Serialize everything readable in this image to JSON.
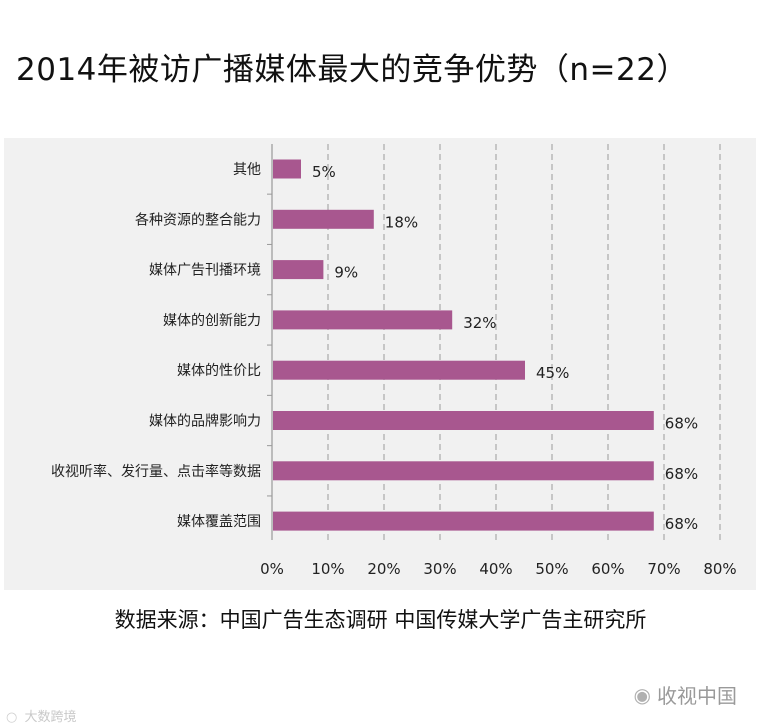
{
  "chart_data": {
    "type": "bar",
    "orientation": "horizontal",
    "title": "2014年被访广播媒体最大的竞争优势（n=22）",
    "categories": [
      "其他",
      "各种资源的整合能力",
      "媒体广告刊播环境",
      "媒体的创新能力",
      "媒体的性价比",
      "媒体的品牌影响力",
      "收视听率、发行量、点击率等数据",
      "媒体覆盖范围"
    ],
    "values": [
      5,
      18,
      9,
      32,
      45,
      68,
      68,
      68
    ],
    "value_labels": [
      "5%",
      "18%",
      "9%",
      "32%",
      "45%",
      "68%",
      "68%",
      "68%"
    ],
    "xlim": [
      0,
      80
    ],
    "xticks": [
      0,
      10,
      20,
      30,
      40,
      50,
      60,
      70,
      80
    ],
    "xtick_labels": [
      "0%",
      "10%",
      "20%",
      "30%",
      "40%",
      "50%",
      "60%",
      "70%",
      "80%"
    ],
    "xlabel": "",
    "ylabel": "",
    "grid": "vertical-dashed",
    "legend": "none",
    "bar_color": "#a8578f",
    "grid_color": "#a9a9a9",
    "plot_background": "#f1f1f1"
  },
  "source_text": "数据来源：中国广告生态调研 中国传媒大学广告主研究所",
  "brand_icon": "wechat-icon",
  "brand_text": "收视中国",
  "watermark_icon": "logo-icon",
  "watermark_text": "大数跨境"
}
